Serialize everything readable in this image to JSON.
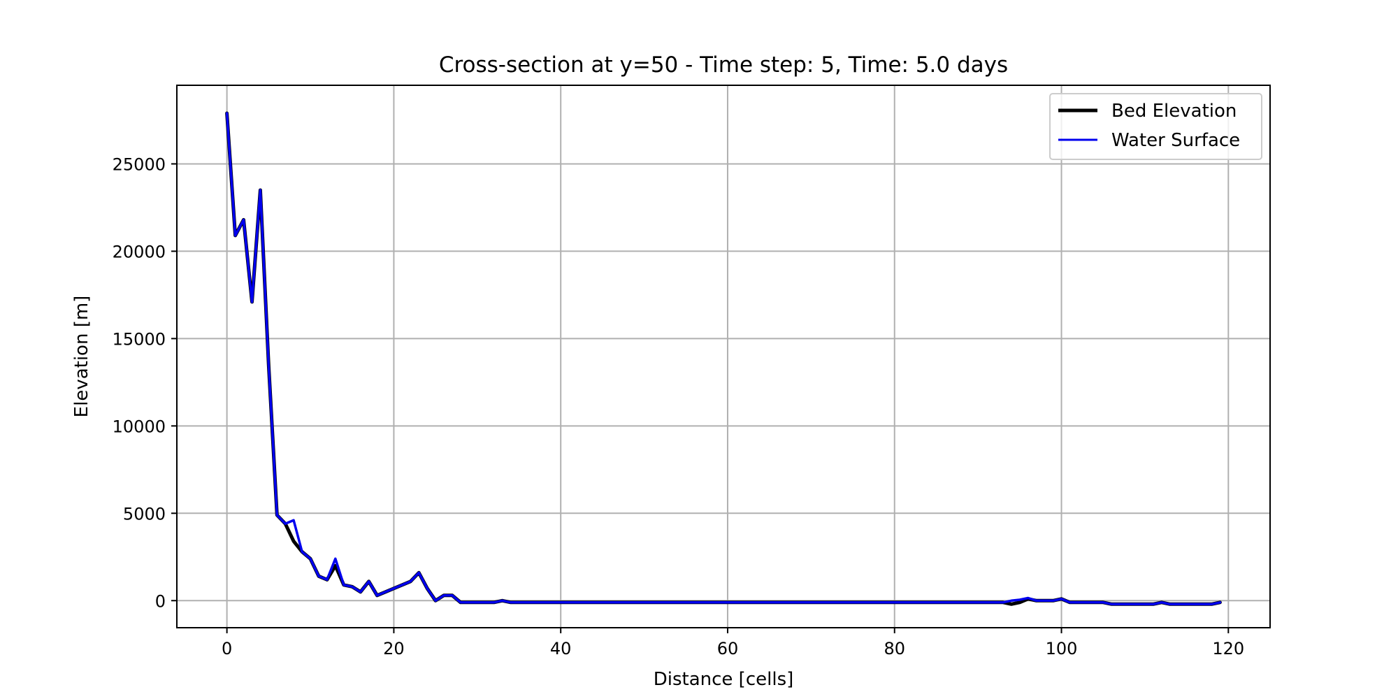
{
  "chart_data": {
    "type": "line",
    "title": "Cross-section at y=50 - Time step: 5, Time: 5.0 days",
    "xlabel": "Distance [cells]",
    "ylabel": "Elevation [m]",
    "xlim": [
      -6,
      125
    ],
    "ylim": [
      -1550,
      29500
    ],
    "grid": true,
    "legend_position": "top-right",
    "xticks": [
      0,
      20,
      40,
      60,
      80,
      100,
      120
    ],
    "yticks": [
      0,
      5000,
      10000,
      15000,
      20000,
      25000
    ],
    "x": [
      0,
      1,
      2,
      3,
      4,
      5,
      6,
      7,
      8,
      9,
      10,
      11,
      12,
      13,
      14,
      15,
      16,
      17,
      18,
      19,
      20,
      21,
      22,
      23,
      24,
      25,
      26,
      27,
      28,
      29,
      30,
      31,
      32,
      33,
      34,
      35,
      36,
      37,
      38,
      39,
      40,
      41,
      42,
      43,
      44,
      45,
      46,
      47,
      48,
      49,
      50,
      51,
      52,
      53,
      54,
      55,
      56,
      57,
      58,
      59,
      60,
      61,
      62,
      63,
      64,
      65,
      66,
      67,
      68,
      69,
      70,
      71,
      72,
      73,
      74,
      75,
      76,
      77,
      78,
      79,
      80,
      81,
      82,
      83,
      84,
      85,
      86,
      87,
      88,
      89,
      90,
      91,
      92,
      93,
      94,
      95,
      96,
      97,
      98,
      99,
      100,
      101,
      102,
      103,
      104,
      105,
      106,
      107,
      108,
      109,
      110,
      111,
      112,
      113,
      114,
      115,
      116,
      117,
      118,
      119
    ],
    "series": [
      {
        "name": "Bed Elevation",
        "color": "#000000",
        "values": [
          27900,
          20900,
          21800,
          17100,
          23500,
          13500,
          4900,
          4400,
          3400,
          2800,
          2400,
          1400,
          1200,
          2000,
          900,
          800,
          500,
          1100,
          300,
          500,
          700,
          900,
          1100,
          1600,
          700,
          0,
          300,
          300,
          -100,
          -100,
          -100,
          -100,
          -100,
          0,
          -100,
          -100,
          -100,
          -100,
          -100,
          -100,
          -100,
          -100,
          -100,
          -100,
          -100,
          -100,
          -100,
          -100,
          -100,
          -100,
          -100,
          -100,
          -100,
          -100,
          -100,
          -100,
          -100,
          -100,
          -100,
          -100,
          -100,
          -100,
          -100,
          -100,
          -100,
          -100,
          -100,
          -100,
          -100,
          -100,
          -100,
          -100,
          -100,
          -100,
          -100,
          -100,
          -100,
          -100,
          -100,
          -100,
          -100,
          -100,
          -100,
          -100,
          -100,
          -100,
          -100,
          -100,
          -100,
          -100,
          -100,
          -100,
          -100,
          -100,
          -200,
          -100,
          100,
          0,
          0,
          0,
          100,
          -100,
          -100,
          -100,
          -100,
          -100,
          -200,
          -200,
          -200,
          -200,
          -200,
          -200,
          -100,
          -200,
          -200,
          -200,
          -200,
          -200,
          -200,
          -100
        ]
      },
      {
        "name": "Water Surface",
        "color": "#0000ee",
        "values": [
          27900,
          20900,
          21800,
          17100,
          23500,
          13500,
          4900,
          4400,
          4600,
          2800,
          2400,
          1400,
          1200,
          2400,
          900,
          800,
          500,
          1100,
          300,
          500,
          700,
          900,
          1100,
          1600,
          700,
          0,
          300,
          300,
          -100,
          -100,
          -100,
          -100,
          -100,
          0,
          -100,
          -100,
          -100,
          -100,
          -100,
          -100,
          -100,
          -100,
          -100,
          -100,
          -100,
          -100,
          -100,
          -100,
          -100,
          -100,
          -100,
          -100,
          -100,
          -100,
          -100,
          -100,
          -100,
          -100,
          -100,
          -100,
          -100,
          -100,
          -100,
          -100,
          -100,
          -100,
          -100,
          -100,
          -100,
          -100,
          -100,
          -100,
          -100,
          -100,
          -100,
          -100,
          -100,
          -100,
          -100,
          -100,
          -100,
          -100,
          -100,
          -100,
          -100,
          -100,
          -100,
          -100,
          -100,
          -100,
          -100,
          -100,
          -100,
          -100,
          0,
          50,
          150,
          0,
          0,
          0,
          100,
          -100,
          -100,
          -100,
          -100,
          -100,
          -200,
          -200,
          -200,
          -200,
          -200,
          -200,
          -100,
          -200,
          -200,
          -200,
          -200,
          -200,
          -200,
          -100
        ]
      }
    ]
  }
}
